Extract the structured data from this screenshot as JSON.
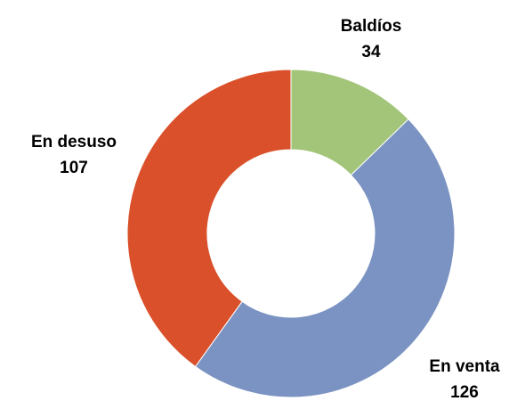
{
  "chart_data": {
    "type": "donut",
    "categories": [
      "Baldíos",
      "En venta",
      "En desuso"
    ],
    "values": [
      34,
      126,
      107
    ],
    "colors": [
      "#a3c57a",
      "#7b93c2",
      "#d9502a"
    ]
  }
}
